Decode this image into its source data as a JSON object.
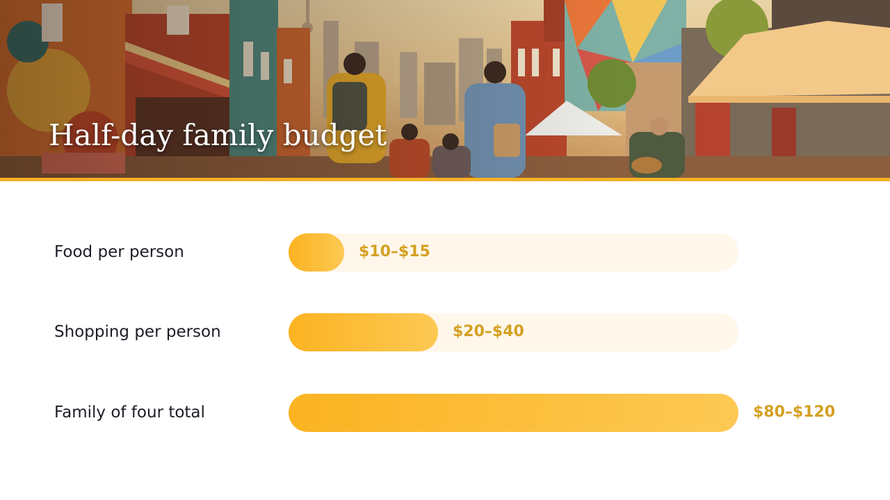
{
  "title": "Half-day family budget",
  "colors": {
    "accent": "#f2b124",
    "bar": "#fbb321",
    "track": "#fff7ea",
    "value_text": "#d4a021",
    "label_text": "#1d1d28"
  },
  "chart_data": {
    "type": "bar",
    "orientation": "horizontal",
    "title": "Half-day family budget",
    "categories": [
      "Food per person",
      "Shopping per person",
      "Family of four total"
    ],
    "value_labels": [
      "$10–$15",
      "$20–$40",
      "$80–$120"
    ],
    "ranges": [
      [
        10,
        15
      ],
      [
        20,
        40
      ],
      [
        80,
        120
      ]
    ],
    "xlim": [
      0,
      120
    ],
    "grid": false
  }
}
